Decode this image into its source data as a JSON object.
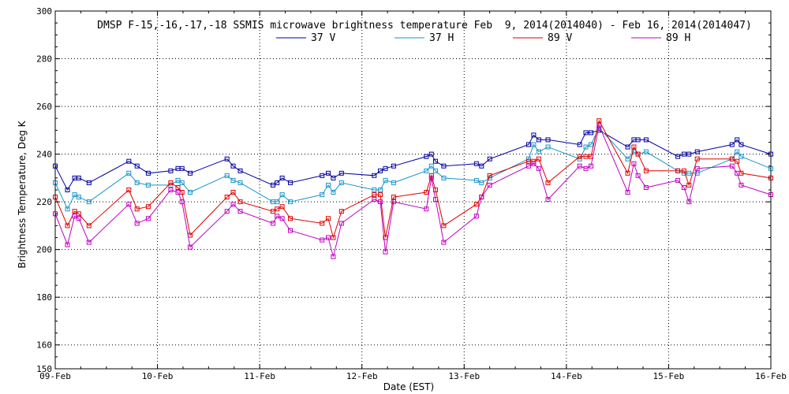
{
  "chart_data": {
    "type": "line",
    "title": "DMSP F-15,-16,-17,-18 SSMIS microwave brightness temperature Feb  9, 2014(2014040) - Feb 16, 2014(2014047)",
    "xlabel": "Date (EST)",
    "ylabel": "Brightness Temperature, Deg K",
    "xlim": [
      0,
      7
    ],
    "ylim": [
      150,
      300
    ],
    "yticks": [
      150,
      160,
      180,
      200,
      220,
      240,
      260,
      280,
      300
    ],
    "ytick_labels": [
      "150",
      "160",
      "180",
      "200",
      "220",
      "240",
      "260",
      "280",
      "300"
    ],
    "xticks": [
      0,
      1,
      2,
      3,
      4,
      5,
      6,
      7
    ],
    "xtick_labels": [
      "09-Feb",
      "10-Feb",
      "11-Feb",
      "12-Feb",
      "13-Feb",
      "14-Feb",
      "15-Feb",
      "16-Feb"
    ],
    "grid": true,
    "legend_position": "top-center",
    "series": [
      {
        "name": "37 V",
        "color": "#0000a0",
        "x": [
          0.0,
          0.12,
          0.19,
          0.23,
          0.33,
          0.72,
          0.8,
          0.91,
          1.13,
          1.2,
          1.24,
          1.32,
          1.68,
          1.74,
          1.81,
          2.13,
          2.17,
          2.22,
          2.3,
          2.61,
          2.67,
          2.72,
          2.8,
          3.12,
          3.18,
          3.23,
          3.31,
          3.63,
          3.68,
          3.72,
          3.8,
          4.12,
          4.17,
          4.25,
          4.63,
          4.68,
          4.73,
          4.82,
          5.13,
          5.19,
          5.24,
          5.32,
          5.6,
          5.66,
          5.7,
          5.78,
          6.09,
          6.15,
          6.2,
          6.28,
          6.62,
          6.67,
          6.71,
          7.0
        ],
        "y": [
          235,
          225,
          230,
          230,
          228,
          237,
          235,
          232,
          233,
          234,
          234,
          232,
          238,
          235,
          233,
          227,
          228,
          230,
          228,
          231,
          232,
          230,
          232,
          231,
          233,
          234,
          235,
          239,
          240,
          237,
          235,
          236,
          235,
          238,
          244,
          248,
          246,
          246,
          244,
          249,
          249,
          250,
          243,
          246,
          246,
          246,
          239,
          240,
          240,
          241,
          244,
          246,
          244,
          240
        ]
      },
      {
        "name": "37 H",
        "color": "#1a96c8",
        "x": [
          0.0,
          0.12,
          0.19,
          0.23,
          0.33,
          0.72,
          0.8,
          0.91,
          1.13,
          1.2,
          1.24,
          1.32,
          1.68,
          1.74,
          1.81,
          2.13,
          2.17,
          2.22,
          2.3,
          2.61,
          2.67,
          2.72,
          2.8,
          3.12,
          3.18,
          3.23,
          3.31,
          3.63,
          3.68,
          3.72,
          3.8,
          4.12,
          4.17,
          4.25,
          4.63,
          4.68,
          4.73,
          4.82,
          5.13,
          5.19,
          5.24,
          5.32,
          5.6,
          5.66,
          5.7,
          5.78,
          6.09,
          6.15,
          6.2,
          6.28,
          6.62,
          6.67,
          6.71,
          7.0
        ],
        "y": [
          228,
          217,
          223,
          222,
          220,
          232,
          228,
          227,
          227,
          229,
          228,
          224,
          231,
          229,
          228,
          220,
          220,
          223,
          220,
          223,
          227,
          224,
          228,
          225,
          225,
          229,
          228,
          233,
          235,
          233,
          230,
          229,
          228,
          230,
          238,
          244,
          241,
          243,
          238,
          243,
          244,
          251,
          238,
          241,
          240,
          241,
          233,
          232,
          232,
          232,
          238,
          241,
          239,
          234
        ]
      },
      {
        "name": "89 V",
        "color": "#e00000",
        "x": [
          0.0,
          0.12,
          0.19,
          0.23,
          0.33,
          0.72,
          0.8,
          0.91,
          1.13,
          1.2,
          1.24,
          1.32,
          1.68,
          1.74,
          1.81,
          2.13,
          2.17,
          2.22,
          2.3,
          2.61,
          2.67,
          2.72,
          2.8,
          3.12,
          3.18,
          3.23,
          3.31,
          3.63,
          3.68,
          3.72,
          3.8,
          4.12,
          4.17,
          4.25,
          4.63,
          4.68,
          4.73,
          4.82,
          5.13,
          5.19,
          5.24,
          5.32,
          5.6,
          5.66,
          5.7,
          5.78,
          6.09,
          6.15,
          6.2,
          6.28,
          6.62,
          6.67,
          6.71,
          7.0
        ],
        "y": [
          222,
          210,
          216,
          215,
          210,
          225,
          217,
          218,
          228,
          226,
          224,
          206,
          222,
          224,
          220,
          216,
          217,
          218,
          213,
          211,
          213,
          205,
          216,
          223,
          223,
          205,
          222,
          224,
          231,
          225,
          210,
          219,
          222,
          231,
          237,
          237,
          238,
          228,
          239,
          239,
          239,
          254,
          232,
          243,
          240,
          233,
          233,
          233,
          227,
          238,
          238,
          237,
          232,
          230
        ]
      },
      {
        "name": "89 H",
        "color": "#c000c0",
        "x": [
          0.0,
          0.12,
          0.19,
          0.23,
          0.33,
          0.72,
          0.8,
          0.91,
          1.13,
          1.2,
          1.24,
          1.32,
          1.68,
          1.74,
          1.81,
          2.13,
          2.17,
          2.22,
          2.3,
          2.61,
          2.67,
          2.72,
          2.8,
          3.12,
          3.18,
          3.23,
          3.31,
          3.63,
          3.68,
          3.72,
          3.8,
          4.12,
          4.17,
          4.25,
          4.63,
          4.68,
          4.73,
          4.82,
          5.13,
          5.19,
          5.24,
          5.32,
          5.6,
          5.66,
          5.7,
          5.78,
          6.09,
          6.15,
          6.2,
          6.28,
          6.62,
          6.67,
          6.71,
          7.0
        ],
        "y": [
          215,
          202,
          214,
          213,
          203,
          219,
          211,
          213,
          225,
          224,
          220,
          201,
          216,
          219,
          216,
          211,
          214,
          213,
          208,
          204,
          205,
          197,
          211,
          221,
          220,
          199,
          220,
          217,
          230,
          221,
          203,
          214,
          222,
          227,
          235,
          236,
          234,
          221,
          235,
          234,
          235,
          252,
          224,
          236,
          231,
          226,
          229,
          226,
          220,
          234,
          235,
          232,
          227,
          223
        ]
      }
    ]
  }
}
